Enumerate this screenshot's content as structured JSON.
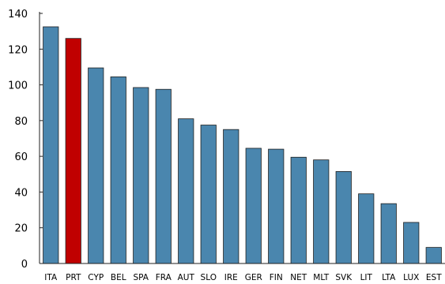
{
  "chart_data": {
    "type": "bar",
    "title": "",
    "xlabel": "",
    "ylabel": "",
    "ylim": [
      0,
      140
    ],
    "yticks": [
      0,
      20,
      40,
      60,
      80,
      100,
      120,
      140
    ],
    "grid": false,
    "legend": "none",
    "categories": [
      "ITA",
      "PRT",
      "CYP",
      "BEL",
      "SPA",
      "FRA",
      "AUT",
      "SLO",
      "IRE",
      "GER",
      "FIN",
      "NET",
      "MLT",
      "SVK",
      "LIT",
      "LTA",
      "LUX",
      "EST"
    ],
    "series": [
      {
        "values": [
          132.5,
          126.0,
          109.5,
          104.5,
          98.5,
          97.5,
          81.0,
          77.5,
          75.0,
          64.5,
          64.0,
          59.5,
          58.0,
          51.5,
          39.0,
          33.5,
          23.0,
          9.0
        ]
      }
    ],
    "colors": {
      "default_bar": "#4a86ae",
      "highlight_bar": "#c00000",
      "bar_outline": "#1f1f1f",
      "axis": "#222222"
    },
    "highlight_category": "PRT"
  }
}
